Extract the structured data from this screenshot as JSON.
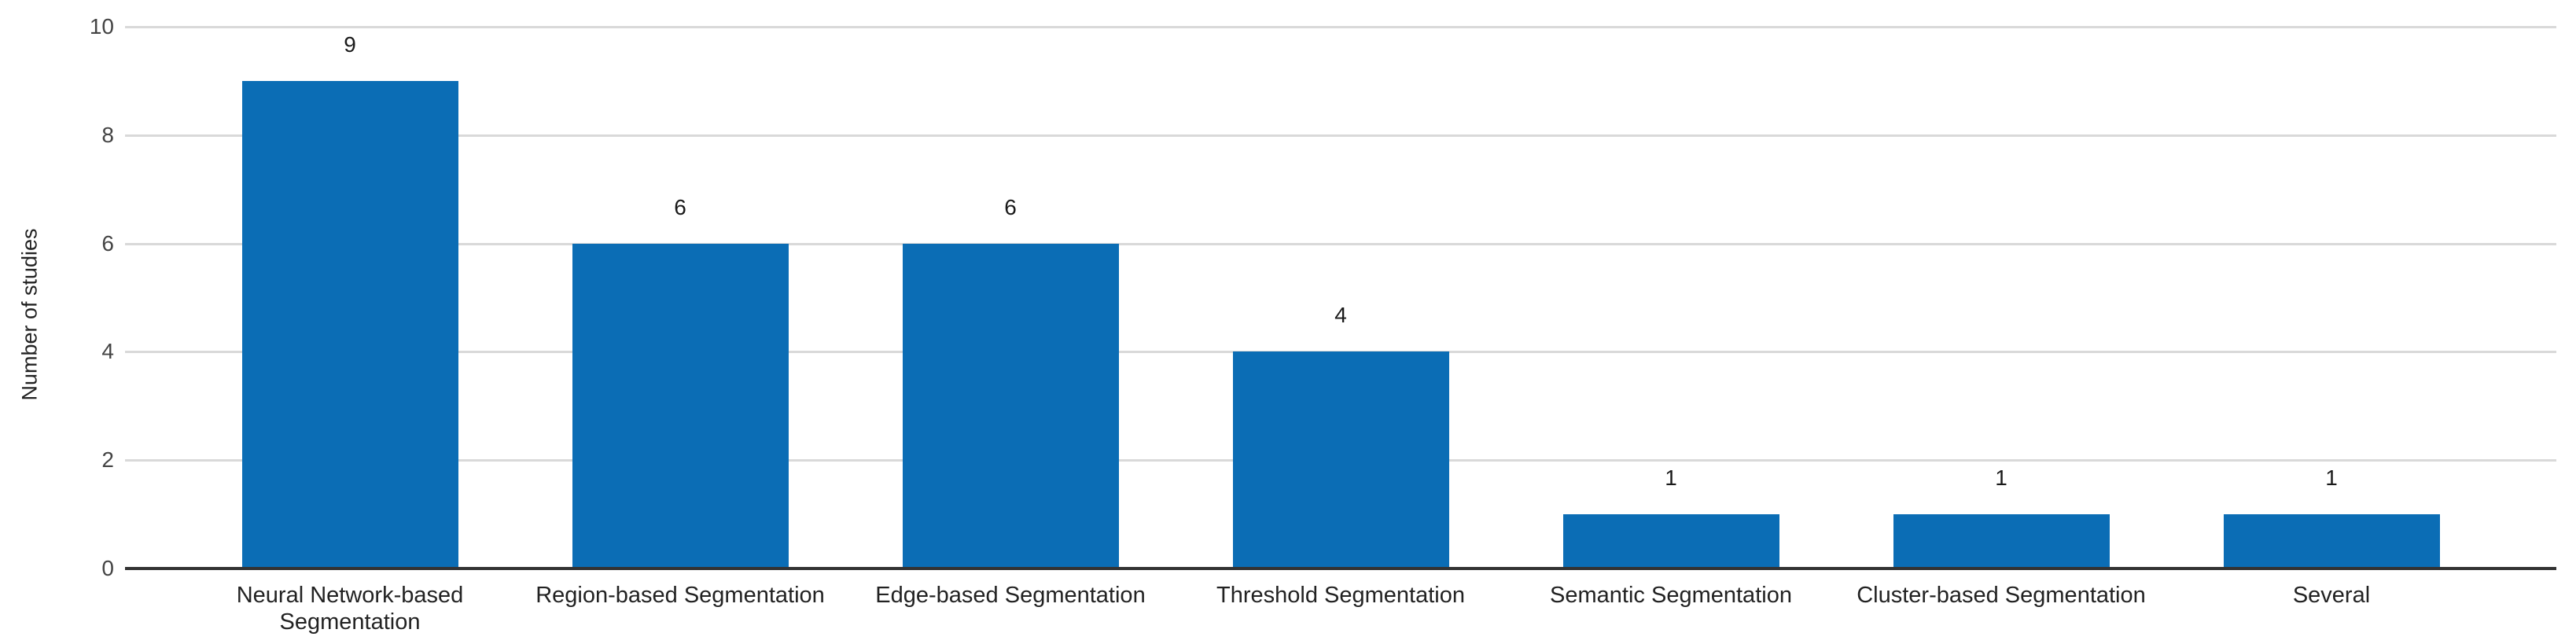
{
  "chart_data": {
    "type": "bar",
    "title": "",
    "categories": [
      "Neural Network-based Segmentation",
      "Region-based Segmentation",
      "Edge-based Segmentation",
      "Threshold Segmentation",
      "Semantic Segmentation",
      "Cluster-based Segmentation",
      "Several"
    ],
    "values": [
      9,
      6,
      6,
      4,
      1,
      1,
      1
    ],
    "value_labels": [
      "9",
      "6",
      "6",
      "4",
      "1",
      "1",
      "1"
    ],
    "xlabel": "",
    "ylabel": "Number of studies",
    "ylim": [
      0,
      10
    ],
    "yticks": [
      0,
      2,
      4,
      6,
      8,
      10
    ],
    "grid": true,
    "legend": "none",
    "colors": {
      "bar": "#0b6db5",
      "gridline": "#d9d9d9",
      "axis_line": "#333333",
      "tick_label": "#444444",
      "category_label": "#222222",
      "value_label": "#1a1a1a"
    }
  }
}
